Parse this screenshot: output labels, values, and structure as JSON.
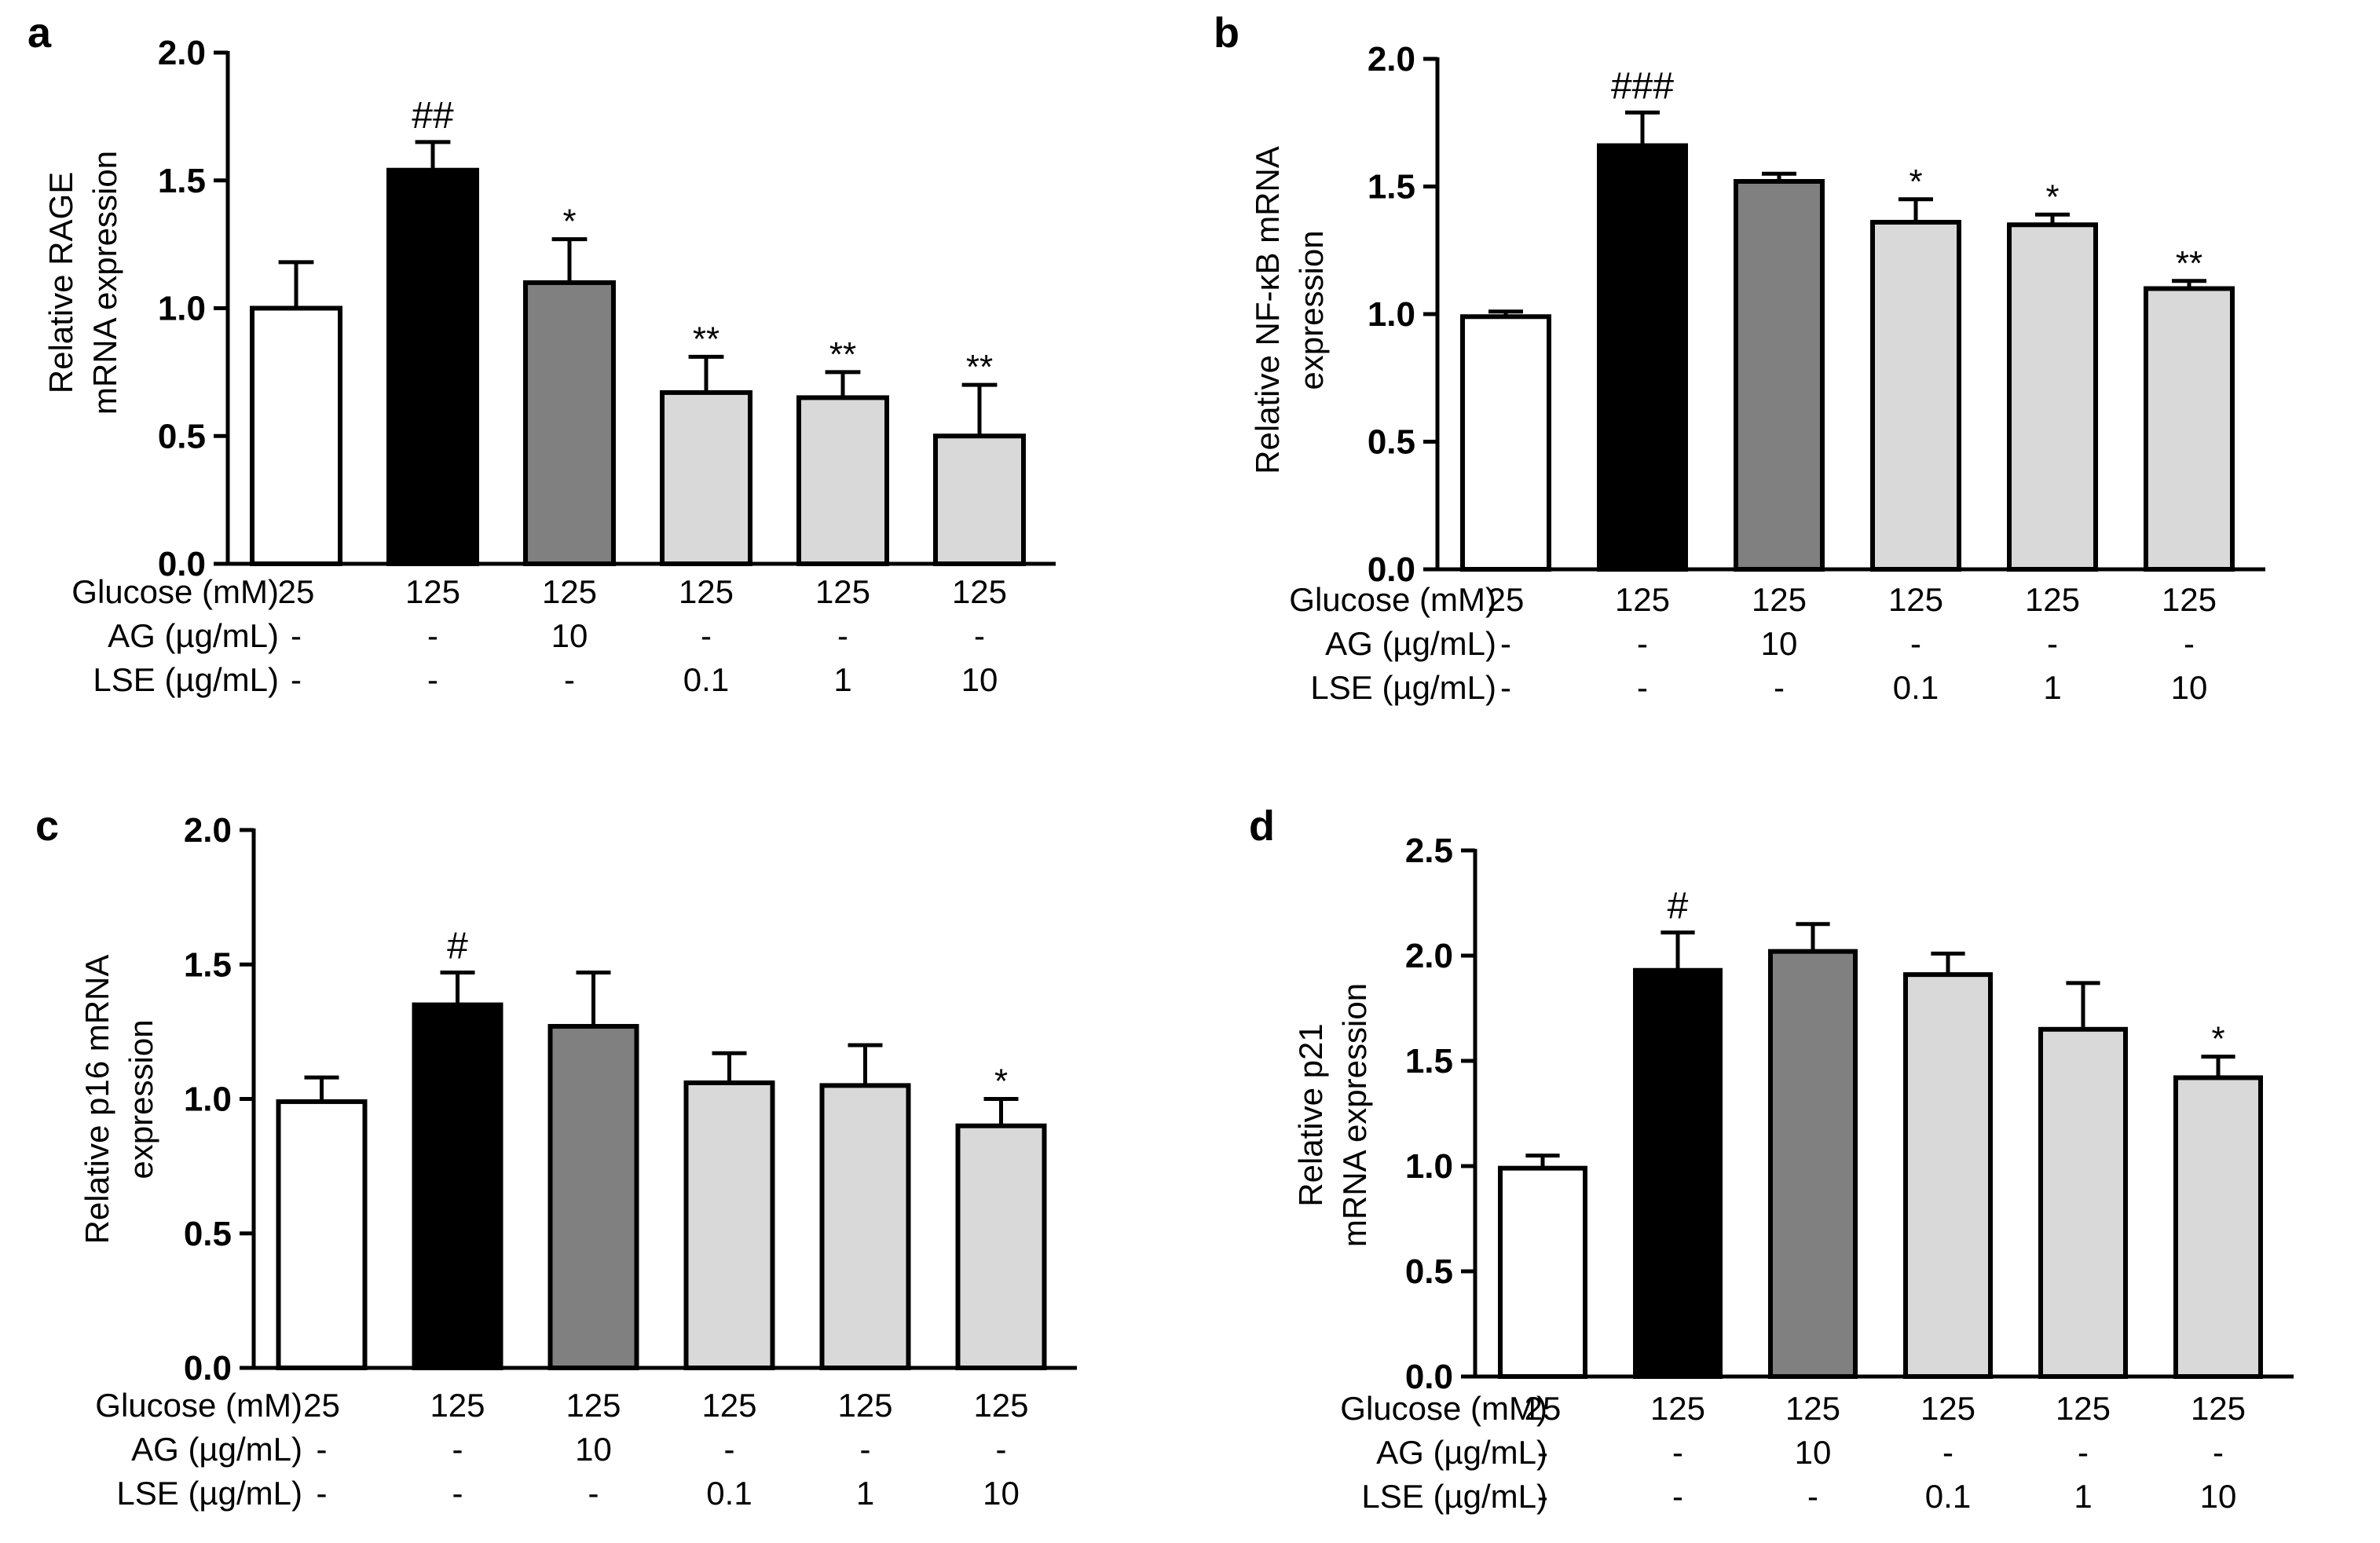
{
  "figure": {
    "row_labels": [
      "Glucose (mM)",
      "AG (µg/mL)",
      "LSE (µg/mL)"
    ],
    "conditions": {
      "glucose": [
        "25",
        "125",
        "125",
        "125",
        "125",
        "125"
      ],
      "ag": [
        "-",
        "-",
        "10",
        "-",
        "-",
        "-"
      ],
      "lse": [
        "-",
        "-",
        "-",
        "0.1",
        "1",
        "10"
      ]
    }
  },
  "chart_data": [
    {
      "panel": "a",
      "type": "bar",
      "ylabel_lines": [
        "Relative RAGE",
        "mRNA expression"
      ],
      "ylim": [
        0,
        2.0
      ],
      "yticks": [
        "0.0",
        "0.5",
        "1.0",
        "1.5",
        "2.0"
      ],
      "values": [
        1.0,
        1.54,
        1.1,
        0.67,
        0.65,
        0.5
      ],
      "errors": [
        0.18,
        0.11,
        0.17,
        0.14,
        0.1,
        0.2
      ],
      "significance": [
        "",
        "##",
        "*",
        "**",
        "**",
        "**"
      ],
      "bar_colors": [
        "#ffffff",
        "#000000",
        "#808080",
        "#d9d9d9",
        "#d9d9d9",
        "#d9d9d9"
      ]
    },
    {
      "panel": "b",
      "type": "bar",
      "ylabel_lines": [
        "Relative NF-κB mRNA",
        "expression"
      ],
      "ylim": [
        0,
        2.0
      ],
      "yticks": [
        "0.0",
        "0.5",
        "1.0",
        "1.5",
        "2.0"
      ],
      "values": [
        0.99,
        1.66,
        1.52,
        1.36,
        1.35,
        1.1
      ],
      "errors": [
        0.02,
        0.13,
        0.03,
        0.09,
        0.04,
        0.03
      ],
      "significance": [
        "",
        "###",
        "",
        "*",
        "*",
        "**"
      ],
      "bar_colors": [
        "#ffffff",
        "#000000",
        "#808080",
        "#d9d9d9",
        "#d9d9d9",
        "#d9d9d9"
      ]
    },
    {
      "panel": "c",
      "type": "bar",
      "ylabel_lines": [
        "Relative p16 mRNA",
        "expression"
      ],
      "ylim": [
        0,
        2.0
      ],
      "yticks": [
        "0.0",
        "0.5",
        "1.0",
        "1.5",
        "2.0"
      ],
      "values": [
        0.99,
        1.35,
        1.27,
        1.06,
        1.05,
        0.9
      ],
      "errors": [
        0.09,
        0.12,
        0.2,
        0.11,
        0.15,
        0.1
      ],
      "significance": [
        "",
        "#",
        "",
        "",
        "",
        "*"
      ],
      "bar_colors": [
        "#ffffff",
        "#000000",
        "#808080",
        "#d9d9d9",
        "#d9d9d9",
        "#d9d9d9"
      ]
    },
    {
      "panel": "d",
      "type": "bar",
      "ylabel_lines": [
        "Relative p21",
        "mRNA expression"
      ],
      "ylim": [
        0,
        2.5
      ],
      "yticks": [
        "0.0",
        "0.5",
        "1.0",
        "1.5",
        "2.0",
        "2.5"
      ],
      "values": [
        0.99,
        1.93,
        2.02,
        1.91,
        1.65,
        1.42
      ],
      "errors": [
        0.06,
        0.18,
        0.13,
        0.1,
        0.22,
        0.1
      ],
      "significance": [
        "",
        "#",
        "",
        "",
        "",
        "*"
      ],
      "bar_colors": [
        "#ffffff",
        "#000000",
        "#808080",
        "#d9d9d9",
        "#d9d9d9",
        "#d9d9d9"
      ]
    }
  ]
}
